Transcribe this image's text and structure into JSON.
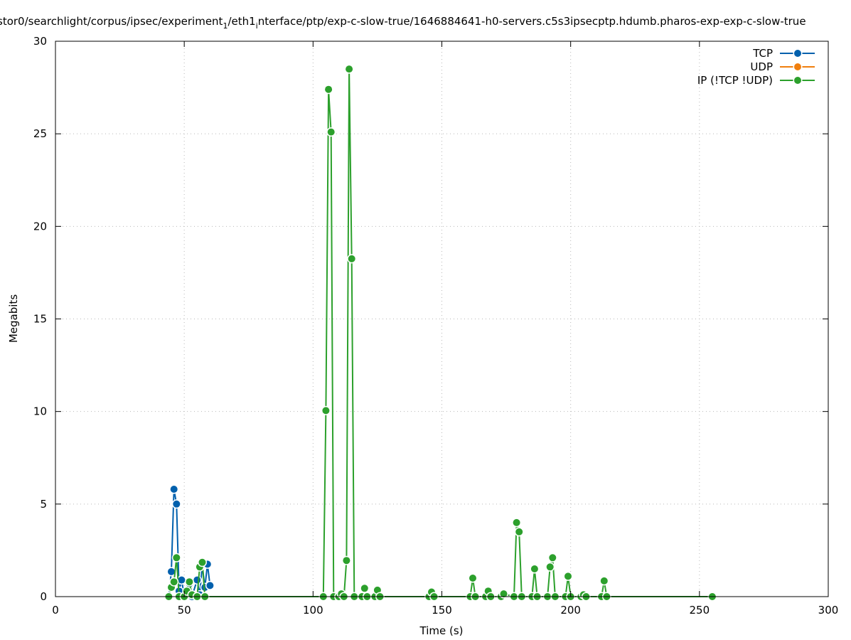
{
  "chart_data": {
    "type": "line",
    "title": "stor0/searchlight/corpus/ipsec/experiment",
    "title_sub": "1",
    "title_mid": "/eth1",
    "title_sub2": "i",
    "title_end": "nterface/ptp/exp-c-slow-true/1646884641-h0-servers.c5s3ipsecptp.hdumb.pharos-exp-exp-c-slow-true",
    "xlabel": "Time (s)",
    "ylabel": "Megabits",
    "xlim": [
      0,
      300
    ],
    "ylim": [
      0,
      30
    ],
    "xticks": [
      0,
      50,
      100,
      150,
      200,
      250,
      300
    ],
    "yticks": [
      0,
      5,
      10,
      15,
      20,
      25,
      30
    ],
    "grid": true,
    "legend_position": "top-right",
    "series": [
      {
        "name": "TCP",
        "color": "#0060ad",
        "points": [
          [
            44,
            0.0
          ],
          [
            45,
            1.35
          ],
          [
            46,
            5.8
          ],
          [
            47,
            5.0
          ],
          [
            48,
            0.3
          ],
          [
            49,
            0.9
          ],
          [
            50,
            0.0
          ],
          [
            52,
            0.7
          ],
          [
            53,
            0.0
          ],
          [
            55,
            0.9
          ],
          [
            56,
            0.1
          ],
          [
            57,
            1.7
          ],
          [
            58,
            0.5
          ],
          [
            59,
            1.75
          ],
          [
            60,
            0.6
          ]
        ]
      },
      {
        "name": "UDP",
        "color": "#f07f0e",
        "points": []
      },
      {
        "name": "IP (!TCP  !UDP)",
        "color": "#2ca02c",
        "points": [
          [
            44,
            0.0
          ],
          [
            45,
            0.5
          ],
          [
            46,
            0.8
          ],
          [
            47,
            2.1
          ],
          [
            48,
            0.0
          ],
          [
            50,
            0.0
          ],
          [
            51,
            0.3
          ],
          [
            52,
            0.8
          ],
          [
            53,
            0.1
          ],
          [
            55,
            0.0
          ],
          [
            56,
            1.6
          ],
          [
            57,
            1.85
          ],
          [
            58,
            0.0
          ],
          [
            104,
            0.0
          ],
          [
            105,
            10.05
          ],
          [
            106,
            27.4
          ],
          [
            107,
            25.1
          ],
          [
            108,
            0.0
          ],
          [
            110,
            0.0
          ],
          [
            111,
            0.15
          ],
          [
            112,
            0.0
          ],
          [
            113,
            1.95
          ],
          [
            114,
            28.5
          ],
          [
            115,
            18.25
          ],
          [
            116,
            0.0
          ],
          [
            119,
            0.0
          ],
          [
            120,
            0.45
          ],
          [
            121,
            0.0
          ],
          [
            124,
            0.0
          ],
          [
            125,
            0.35
          ],
          [
            126,
            0.0
          ],
          [
            145,
            0.0
          ],
          [
            146,
            0.25
          ],
          [
            147,
            0.0
          ],
          [
            161,
            0.0
          ],
          [
            162,
            1.0
          ],
          [
            163,
            0.0
          ],
          [
            167,
            0.0
          ],
          [
            168,
            0.3
          ],
          [
            169,
            0.0
          ],
          [
            173,
            0.0
          ],
          [
            174,
            0.15
          ],
          [
            178,
            0.0
          ],
          [
            179,
            4.0
          ],
          [
            180,
            3.5
          ],
          [
            181,
            0.0
          ],
          [
            185,
            0.0
          ],
          [
            186,
            1.5
          ],
          [
            187,
            0.0
          ],
          [
            191,
            0.0
          ],
          [
            192,
            1.6
          ],
          [
            193,
            2.1
          ],
          [
            194,
            0.0
          ],
          [
            198,
            0.0
          ],
          [
            199,
            1.1
          ],
          [
            200,
            0.0
          ],
          [
            204,
            0.0
          ],
          [
            205,
            0.1
          ],
          [
            206,
            0.0
          ],
          [
            212,
            0.0
          ],
          [
            213,
            0.85
          ],
          [
            214,
            0.0
          ],
          [
            255,
            0.0
          ]
        ]
      }
    ]
  }
}
